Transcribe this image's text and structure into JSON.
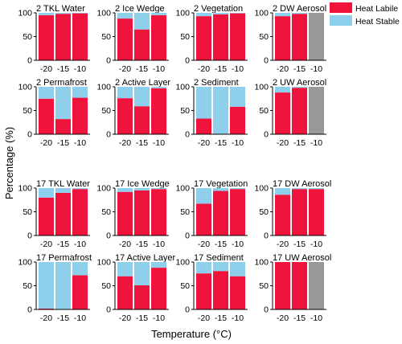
{
  "figure": {
    "ylabel": "Percentage (%)",
    "xlabel": "Temperature (°C)",
    "legend": [
      {
        "label": "Heat Labile",
        "color": "#f0133c"
      },
      {
        "label": "Heat Stable",
        "color": "#8ecfec"
      }
    ],
    "colors": {
      "labile": "#f0133c",
      "stable": "#8ecfec",
      "unavailable": "#989898"
    }
  },
  "chart_data": [
    {
      "type": "bar",
      "stacked": true,
      "title": "2 TKL Water",
      "categories": [
        "-20",
        "-15",
        "-10"
      ],
      "ylim": [
        0,
        100
      ],
      "yticks": [
        "0",
        "50",
        "100"
      ],
      "series": [
        {
          "name": "Heat Labile",
          "values": [
            95,
            98,
            99
          ]
        },
        {
          "name": "Heat Stable",
          "values": [
            5,
            2,
            1
          ]
        }
      ]
    },
    {
      "type": "bar",
      "stacked": true,
      "title": "2 Ice Wedge",
      "categories": [
        "-20",
        "-15",
        "-10"
      ],
      "ylim": [
        0,
        100
      ],
      "yticks": [
        "0",
        "50",
        "100"
      ],
      "series": [
        {
          "name": "Heat Labile",
          "values": [
            88,
            65,
            95
          ]
        },
        {
          "name": "Heat Stable",
          "values": [
            12,
            35,
            5
          ]
        }
      ]
    },
    {
      "type": "bar",
      "stacked": true,
      "title": "2 Vegetation",
      "categories": [
        "-20",
        "-15",
        "-10"
      ],
      "ylim": [
        0,
        100
      ],
      "yticks": [
        "0",
        "50",
        "100"
      ],
      "series": [
        {
          "name": "Heat Labile",
          "values": [
            93,
            97,
            99
          ]
        },
        {
          "name": "Heat Stable",
          "values": [
            7,
            3,
            1
          ]
        }
      ]
    },
    {
      "type": "bar",
      "stacked": true,
      "title": "2 DW Aerosol",
      "categories": [
        "-20",
        "-15",
        "-10"
      ],
      "ylim": [
        0,
        100
      ],
      "yticks": [
        "0",
        "50",
        "100"
      ],
      "unavailable": [
        false,
        false,
        true
      ],
      "series": [
        {
          "name": "Heat Labile",
          "values": [
            93,
            98,
            100
          ]
        },
        {
          "name": "Heat Stable",
          "values": [
            7,
            2,
            0
          ]
        }
      ]
    },
    {
      "type": "bar",
      "stacked": true,
      "title": "2 Permafrost",
      "categories": [
        "-20",
        "-15",
        "-10"
      ],
      "ylim": [
        0,
        100
      ],
      "yticks": [
        "0",
        "50",
        "100"
      ],
      "series": [
        {
          "name": "Heat Labile",
          "values": [
            75,
            32,
            77
          ]
        },
        {
          "name": "Heat Stable",
          "values": [
            25,
            68,
            23
          ]
        }
      ]
    },
    {
      "type": "bar",
      "stacked": true,
      "title": "2 Active Layer",
      "categories": [
        "-20",
        "-15",
        "-10"
      ],
      "ylim": [
        0,
        100
      ],
      "yticks": [
        "0",
        "50",
        "100"
      ],
      "series": [
        {
          "name": "Heat Labile",
          "values": [
            76,
            59,
            97
          ]
        },
        {
          "name": "Heat Stable",
          "values": [
            24,
            41,
            3
          ]
        }
      ]
    },
    {
      "type": "bar",
      "stacked": true,
      "title": "2 Sediment",
      "categories": [
        "-20",
        "-15",
        "-10"
      ],
      "ylim": [
        0,
        100
      ],
      "yticks": [
        "0",
        "50",
        "100"
      ],
      "series": [
        {
          "name": "Heat Labile",
          "values": [
            33,
            0,
            58
          ]
        },
        {
          "name": "Heat Stable",
          "values": [
            67,
            100,
            42
          ]
        }
      ]
    },
    {
      "type": "bar",
      "stacked": true,
      "title": "2 UW Aerosol",
      "categories": [
        "-20",
        "-15",
        "-10"
      ],
      "ylim": [
        0,
        100
      ],
      "yticks": [
        "0",
        "50",
        "100"
      ],
      "unavailable": [
        false,
        false,
        true
      ],
      "series": [
        {
          "name": "Heat Labile",
          "values": [
            88,
            98,
            100
          ]
        },
        {
          "name": "Heat Stable",
          "values": [
            12,
            2,
            0
          ]
        }
      ]
    },
    {
      "type": "bar",
      "stacked": true,
      "title": "17 TKL Water",
      "categories": [
        "-20",
        "-15",
        "-10"
      ],
      "ylim": [
        0,
        100
      ],
      "yticks": [
        "0",
        "50",
        "100"
      ],
      "series": [
        {
          "name": "Heat Labile",
          "values": [
            80,
            90,
            98
          ]
        },
        {
          "name": "Heat Stable",
          "values": [
            20,
            10,
            2
          ]
        }
      ]
    },
    {
      "type": "bar",
      "stacked": true,
      "title": "17 Ice Wedge",
      "categories": [
        "-20",
        "-15",
        "-10"
      ],
      "ylim": [
        0,
        100
      ],
      "yticks": [
        "0",
        "50",
        "100"
      ],
      "series": [
        {
          "name": "Heat Labile",
          "values": [
            92,
            95,
            98
          ]
        },
        {
          "name": "Heat Stable",
          "values": [
            8,
            5,
            2
          ]
        }
      ]
    },
    {
      "type": "bar",
      "stacked": true,
      "title": "17 Vegetation",
      "categories": [
        "-20",
        "-15",
        "-10"
      ],
      "ylim": [
        0,
        100
      ],
      "yticks": [
        "0",
        "50",
        "100"
      ],
      "series": [
        {
          "name": "Heat Labile",
          "values": [
            67,
            94,
            98
          ]
        },
        {
          "name": "Heat Stable",
          "values": [
            33,
            6,
            2
          ]
        }
      ]
    },
    {
      "type": "bar",
      "stacked": true,
      "title": "17 DW Aerosol",
      "categories": [
        "-20",
        "-15",
        "-10"
      ],
      "ylim": [
        0,
        100
      ],
      "yticks": [
        "0",
        "50",
        "100"
      ],
      "series": [
        {
          "name": "Heat Labile",
          "values": [
            86,
            98,
            98
          ]
        },
        {
          "name": "Heat Stable",
          "values": [
            14,
            2,
            2
          ]
        }
      ]
    },
    {
      "type": "bar",
      "stacked": true,
      "title": "17 Permafrost",
      "categories": [
        "-20",
        "-15",
        "-10"
      ],
      "ylim": [
        0,
        100
      ],
      "yticks": [
        "0",
        "50",
        "100"
      ],
      "series": [
        {
          "name": "Heat Labile",
          "values": [
            2,
            0,
            72
          ]
        },
        {
          "name": "Heat Stable",
          "values": [
            98,
            100,
            28
          ]
        }
      ]
    },
    {
      "type": "bar",
      "stacked": true,
      "title": "17 Active Layer",
      "categories": [
        "-20",
        "-15",
        "-10"
      ],
      "ylim": [
        0,
        100
      ],
      "yticks": [
        "0",
        "50",
        "100"
      ],
      "series": [
        {
          "name": "Heat Labile",
          "values": [
            70,
            51,
            88
          ]
        },
        {
          "name": "Heat Stable",
          "values": [
            30,
            49,
            12
          ]
        }
      ]
    },
    {
      "type": "bar",
      "stacked": true,
      "title": "17 Sediment",
      "categories": [
        "-20",
        "-15",
        "-10"
      ],
      "ylim": [
        0,
        100
      ],
      "yticks": [
        "0",
        "50",
        "100"
      ],
      "series": [
        {
          "name": "Heat Labile",
          "values": [
            76,
            81,
            70
          ]
        },
        {
          "name": "Heat Stable",
          "values": [
            24,
            19,
            30
          ]
        }
      ]
    },
    {
      "type": "bar",
      "stacked": true,
      "title": "17 UW Aerosol",
      "categories": [
        "-20",
        "-15",
        "-10"
      ],
      "ylim": [
        0,
        100
      ],
      "yticks": [
        "0",
        "50",
        "100"
      ],
      "unavailable": [
        false,
        false,
        true
      ],
      "series": [
        {
          "name": "Heat Labile",
          "values": [
            100,
            100,
            100
          ]
        },
        {
          "name": "Heat Stable",
          "values": [
            0,
            0,
            0
          ]
        }
      ]
    }
  ]
}
